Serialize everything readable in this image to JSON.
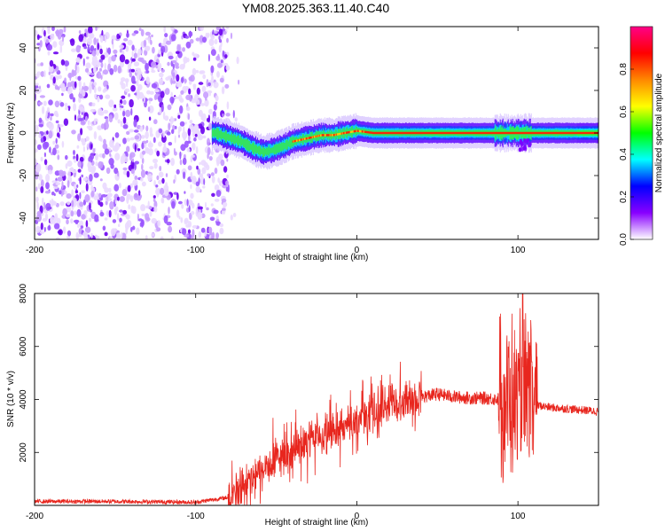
{
  "title": "YM08.2025.363.11.40.C40",
  "chart_data": [
    {
      "type": "heatmap",
      "name": "spectrogram",
      "xlabel": "Height of straight line (km)",
      "ylabel": "Frequency (Hz)",
      "xlim": [
        -200,
        150
      ],
      "ylim": [
        -50,
        50
      ],
      "xticks": [
        -200,
        -100,
        0,
        100
      ],
      "yticks": [
        -40,
        -20,
        0,
        20,
        40
      ],
      "colorbar": {
        "label": "Normalized spectral amplitude",
        "range": [
          0,
          1
        ],
        "ticks": [
          0.0,
          0.2,
          0.4,
          0.6,
          0.8
        ],
        "tick_labels": [
          "0.0",
          "0.2",
          "0.4",
          "0.6",
          "0.8"
        ],
        "colormap": [
          "#ffffff",
          "#8800ff",
          "#0000ff",
          "#00ffff",
          "#00ff00",
          "#ffff00",
          "#ff8800",
          "#ff0000",
          "#ff0088"
        ]
      },
      "noise_region_x": [
        -200,
        -80
      ],
      "ridge": [
        {
          "x": -88,
          "f": 0
        },
        {
          "x": -80,
          "f": -2
        },
        {
          "x": -72,
          "f": -4
        },
        {
          "x": -65,
          "f": -7
        },
        {
          "x": -58,
          "f": -9
        },
        {
          "x": -52,
          "f": -8
        },
        {
          "x": -45,
          "f": -6
        },
        {
          "x": -40,
          "f": -4
        },
        {
          "x": -34,
          "f": -3
        },
        {
          "x": -28,
          "f": -2
        },
        {
          "x": -22,
          "f": -1
        },
        {
          "x": -15,
          "f": -1
        },
        {
          "x": -8,
          "f": 0
        },
        {
          "x": 0,
          "f": 1
        },
        {
          "x": 10,
          "f": 0
        },
        {
          "x": 20,
          "f": 0
        },
        {
          "x": 40,
          "f": 0
        },
        {
          "x": 100,
          "f": 0
        },
        {
          "x": 150,
          "f": 0
        }
      ]
    },
    {
      "type": "line",
      "name": "snr",
      "xlabel": "Height of straight line (km)",
      "ylabel": "SNR (10 * v/v)",
      "xlim": [
        -200,
        150
      ],
      "ylim": [
        0,
        8000
      ],
      "xticks": [
        -200,
        -100,
        0,
        100
      ],
      "yticks": [
        2000,
        4000,
        6000,
        8000
      ],
      "color": "#e8261e",
      "baseline_points": [
        {
          "x": -200,
          "y": 150
        },
        {
          "x": -150,
          "y": 150
        },
        {
          "x": -100,
          "y": 120
        },
        {
          "x": -80,
          "y": 300
        },
        {
          "x": -70,
          "y": 700
        },
        {
          "x": -60,
          "y": 1200
        },
        {
          "x": -50,
          "y": 1700
        },
        {
          "x": -40,
          "y": 2100
        },
        {
          "x": -30,
          "y": 2400
        },
        {
          "x": -20,
          "y": 2700
        },
        {
          "x": -10,
          "y": 2900
        },
        {
          "x": 0,
          "y": 3200
        },
        {
          "x": 10,
          "y": 3500
        },
        {
          "x": 20,
          "y": 3800
        },
        {
          "x": 30,
          "y": 4000
        },
        {
          "x": 40,
          "y": 4100
        },
        {
          "x": 50,
          "y": 4200
        },
        {
          "x": 60,
          "y": 4100
        },
        {
          "x": 70,
          "y": 4050
        },
        {
          "x": 80,
          "y": 4050
        },
        {
          "x": 90,
          "y": 4000
        },
        {
          "x": 100,
          "y": 4000
        },
        {
          "x": 110,
          "y": 3800
        },
        {
          "x": 120,
          "y": 3700
        },
        {
          "x": 130,
          "y": 3650
        },
        {
          "x": 140,
          "y": 3600
        },
        {
          "x": 150,
          "y": 3550
        }
      ],
      "burst_region_x": [
        90,
        112
      ],
      "peak": {
        "x": 103,
        "y": 8000
      }
    }
  ]
}
